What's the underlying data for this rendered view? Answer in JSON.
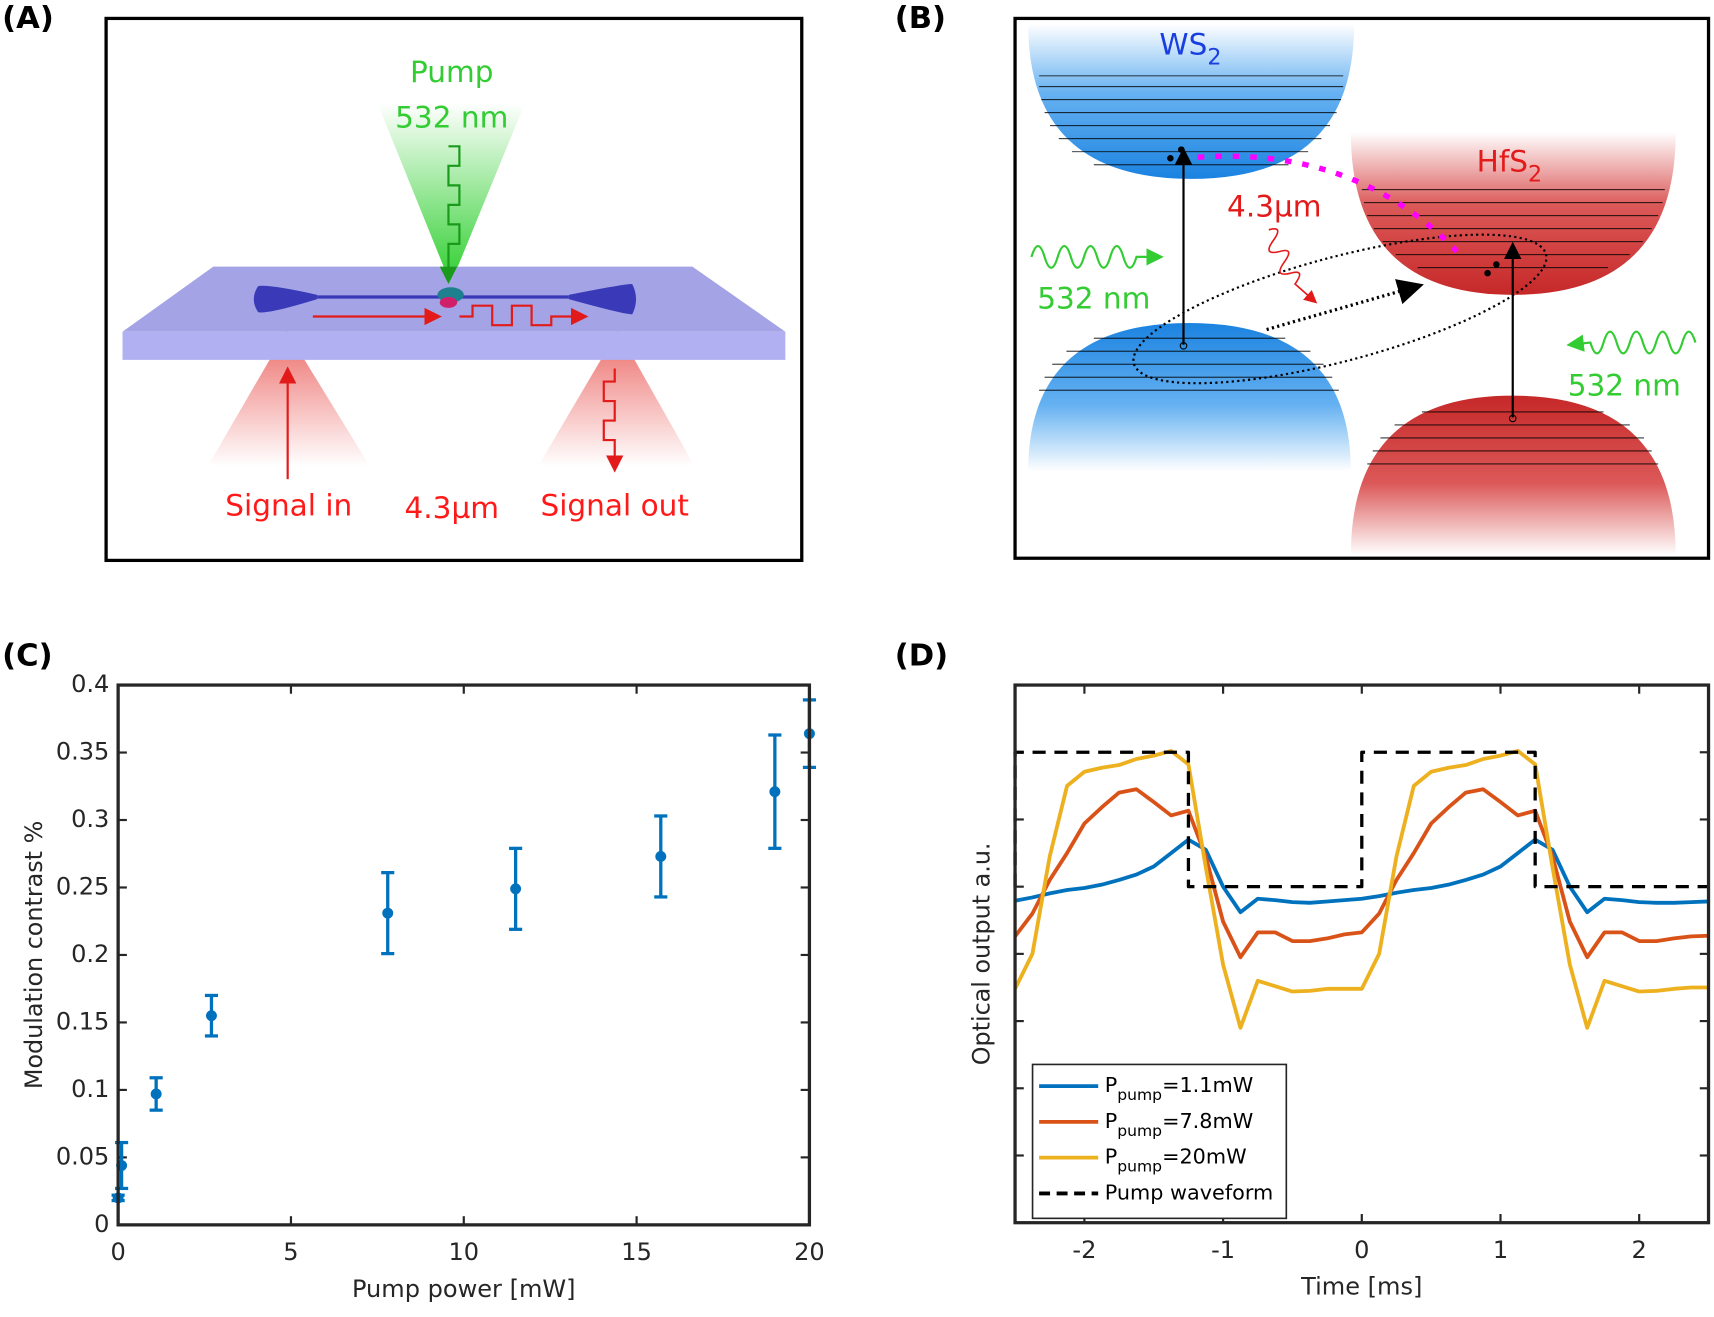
{
  "panel_labels": [
    "(A)",
    "(B)",
    "(C)",
    "(D)"
  ],
  "diagram_a": {
    "pump": "Pump",
    "pump_wavelength": "532 nm",
    "signal_in": "Signal in",
    "signal_wavelength": "4.3µm",
    "signal_out": "Signal out"
  },
  "diagram_b": {
    "material_1": "WS2",
    "material_2": "HfS2",
    "emission": "4.3µm",
    "pump_left": "532 nm",
    "pump_right": "532 nm"
  },
  "chart_data": [
    {
      "type": "scatter",
      "xlabel": "Pump power [mW]",
      "ylabel": "Modulation contrast %",
      "x": [
        0,
        0.1,
        1.1,
        2.7,
        7.8,
        11.5,
        15.7,
        19,
        20
      ],
      "values": [
        0.02,
        0.044,
        0.097,
        0.155,
        0.231,
        0.249,
        0.273,
        0.321,
        0.364
      ],
      "errors": [
        0.002,
        0.017,
        0.012,
        0.015,
        0.03,
        0.03,
        0.03,
        0.042,
        0.025
      ],
      "color": "#0072BD",
      "xlim": [
        0,
        20
      ],
      "ylim": [
        0,
        0.4
      ],
      "xticks": [
        0,
        5,
        10,
        15,
        20
      ],
      "yticks": [
        0,
        0.05,
        0.1,
        0.15,
        0.2,
        0.25,
        0.3,
        0.35,
        0.4
      ]
    },
    {
      "type": "line",
      "xlabel": "Time [ms]",
      "ylabel": "Optical output a.u.",
      "x": [
        -2.5,
        -2.375,
        -2.25,
        -2.125,
        -2,
        -1.875,
        -1.75,
        -1.625,
        -1.5,
        -1.375,
        -1.25,
        -1.125,
        -1,
        -0.875,
        -0.75,
        -0.625,
        -0.5,
        -0.375,
        -0.25,
        -0.125,
        0,
        0.125,
        0.25,
        0.375,
        0.5,
        0.625,
        0.75,
        0.875,
        1,
        1.125,
        1.25,
        1.375,
        1.5,
        1.625,
        1.75,
        1.875,
        2,
        2.125,
        2.25,
        2.375,
        2.5
      ],
      "series": [
        {
          "name": "Ppump=1.1mW",
          "color": "#0072BD",
          "values": [
            4.79,
            4.84,
            4.9,
            4.95,
            4.98,
            5.03,
            5.1,
            5.18,
            5.3,
            5.5,
            5.7,
            5.55,
            5.0,
            4.62,
            4.82,
            4.8,
            4.77,
            4.76,
            4.78,
            4.8,
            4.82,
            4.86,
            4.91,
            4.95,
            4.98,
            5.03,
            5.1,
            5.18,
            5.3,
            5.5,
            5.7,
            5.55,
            5.0,
            4.62,
            4.82,
            4.8,
            4.77,
            4.76,
            4.76,
            4.77,
            4.78
          ]
        },
        {
          "name": "Ppump=7.8mW",
          "color": "#D95319",
          "values": [
            4.26,
            4.6,
            5.1,
            5.5,
            5.94,
            6.18,
            6.4,
            6.45,
            6.26,
            6.06,
            6.13,
            5.45,
            4.48,
            3.95,
            4.32,
            4.32,
            4.19,
            4.19,
            4.23,
            4.29,
            4.32,
            4.6,
            5.1,
            5.5,
            5.94,
            6.18,
            6.4,
            6.45,
            6.26,
            6.06,
            6.13,
            5.45,
            4.48,
            3.95,
            4.32,
            4.32,
            4.19,
            4.19,
            4.23,
            4.26,
            4.27
          ]
        },
        {
          "name": "Ppump=20mW",
          "color": "#EDB120",
          "values": [
            3.48,
            4.0,
            5.45,
            6.5,
            6.71,
            6.77,
            6.81,
            6.9,
            6.95,
            7.02,
            6.82,
            5.29,
            3.84,
            2.9,
            3.6,
            3.52,
            3.44,
            3.45,
            3.48,
            3.48,
            3.48,
            4.0,
            5.45,
            6.5,
            6.71,
            6.77,
            6.81,
            6.9,
            6.95,
            7.02,
            6.82,
            5.29,
            3.84,
            2.9,
            3.6,
            3.52,
            3.44,
            3.45,
            3.48,
            3.5,
            3.5
          ]
        },
        {
          "name": "Pump waveform",
          "color": "#000000",
          "dashed": true,
          "x": [
            -2.5,
            -2.5,
            -1.25,
            -1.25,
            0,
            0,
            1.25,
            1.25,
            2.5
          ],
          "values": [
            5,
            7,
            7,
            5,
            5,
            7,
            7,
            5,
            5
          ]
        }
      ],
      "xlim": [
        -2.5,
        2.5
      ],
      "ylim": [
        0,
        8
      ],
      "xticks": [
        -2,
        -1,
        0,
        1,
        2
      ],
      "yticks": [
        1,
        2,
        3,
        4,
        5,
        6,
        7
      ],
      "ytick_labels": false,
      "legend": "lower left"
    }
  ]
}
